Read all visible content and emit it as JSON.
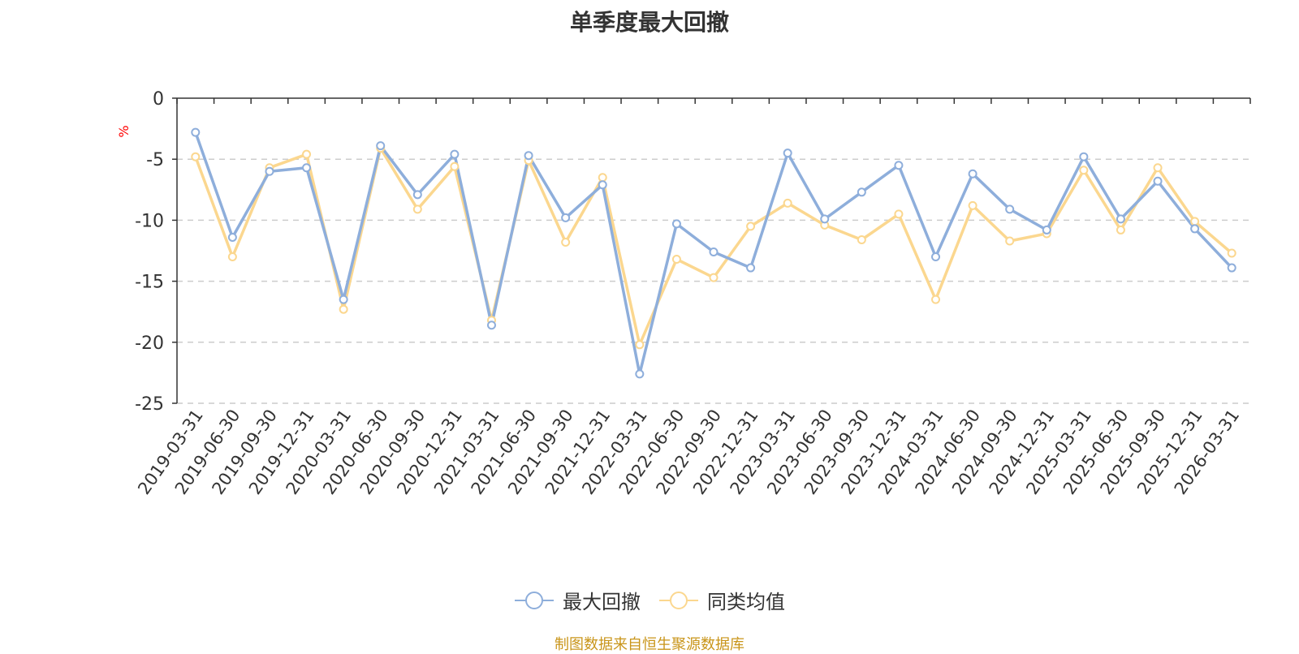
{
  "chart_data": {
    "type": "line",
    "title": "单季度最大回撤",
    "ylabel": "%",
    "ylim": [
      -25,
      0
    ],
    "yticks": [
      0,
      -5,
      -10,
      -15,
      -20,
      -25
    ],
    "grid": true,
    "legend_position": "bottom-center",
    "categories": [
      "2019-03-31",
      "2019-06-30",
      "2019-09-30",
      "2019-12-31",
      "2020-03-31",
      "2020-06-30",
      "2020-09-30",
      "2020-12-31",
      "2021-03-31",
      "2021-06-30",
      "2021-09-30",
      "2021-12-31",
      "2022-03-31",
      "2022-06-30",
      "2022-09-30",
      "2022-12-31",
      "2023-03-31",
      "2023-06-30",
      "2023-09-30",
      "2023-12-31",
      "2024-03-31",
      "2024-06-30",
      "2024-09-30",
      "2024-12-31",
      "2025-03-31",
      "2025-06-30",
      "2025-09-30",
      "2025-12-31",
      "2026-03-31"
    ],
    "series": [
      {
        "name": "最大回撤",
        "color": "#8eaedb",
        "values": [
          -2.8,
          -11.4,
          -6.0,
          -5.7,
          -16.5,
          -3.9,
          -7.9,
          -4.6,
          -18.6,
          -4.7,
          -9.8,
          -7.1,
          -22.6,
          -10.3,
          -12.6,
          -13.9,
          -4.5,
          -9.9,
          -7.7,
          -5.5,
          -13.0,
          -6.2,
          -9.1,
          -10.8,
          -4.8,
          -9.9,
          -6.8,
          -10.7,
          -13.9
        ]
      },
      {
        "name": "同类均值",
        "color": "#fbd78f",
        "values": [
          -4.8,
          -13.0,
          -5.7,
          -4.6,
          -17.3,
          -4.1,
          -9.1,
          -5.6,
          -18.2,
          -5.1,
          -11.8,
          -6.5,
          -20.2,
          -13.2,
          -14.7,
          -10.5,
          -8.6,
          -10.4,
          -11.6,
          -9.5,
          -16.5,
          -8.8,
          -11.7,
          -11.1,
          -5.9,
          -10.8,
          -5.7,
          -10.1,
          -12.7
        ]
      }
    ]
  },
  "source_note": "制图数据来自恒生聚源数据库",
  "colors": {
    "axis": "#333333",
    "grid": "#cccccc",
    "ylabel": "#ff0000",
    "source_note": "#c9951a"
  }
}
